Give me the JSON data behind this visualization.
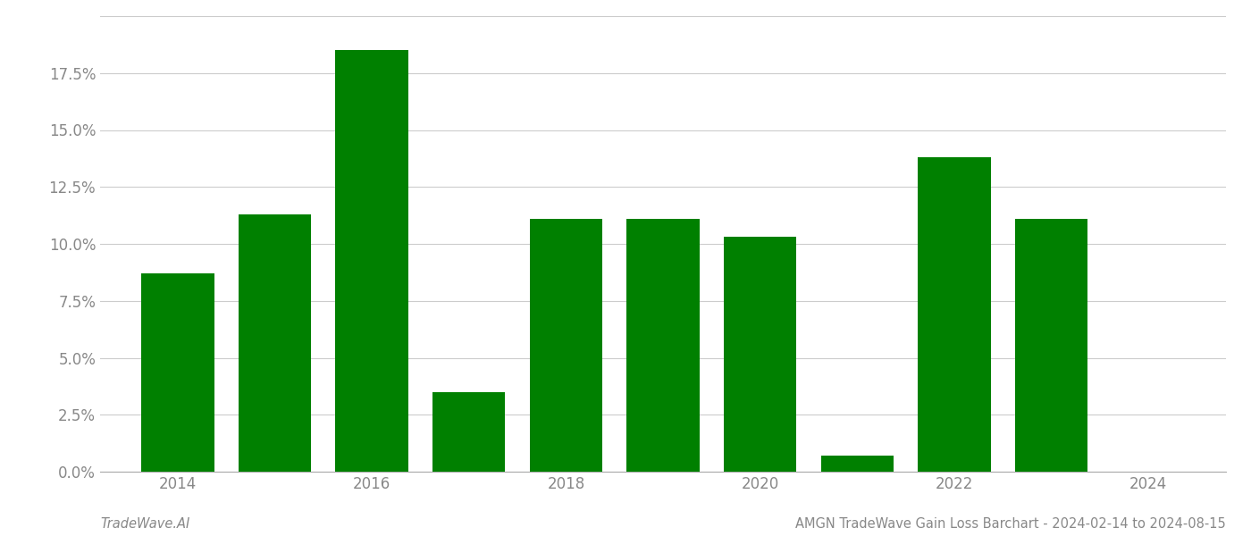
{
  "years": [
    2014,
    2015,
    2016,
    2017,
    2018,
    2019,
    2020,
    2021,
    2022,
    2023,
    2024
  ],
  "values": [
    0.087,
    0.113,
    0.185,
    0.035,
    0.111,
    0.111,
    0.103,
    0.007,
    0.138,
    0.111,
    0.0
  ],
  "bar_color": "#008000",
  "background_color": "#ffffff",
  "grid_color": "#cccccc",
  "axis_color": "#aaaaaa",
  "tick_color": "#888888",
  "ylim": [
    0,
    0.2
  ],
  "yticks": [
    0.0,
    0.025,
    0.05,
    0.075,
    0.1,
    0.125,
    0.15,
    0.175,
    0.2
  ],
  "ytick_labels": [
    "0.0%",
    "2.5%",
    "5.0%",
    "7.5%",
    "10.0%",
    "12.5%",
    "15.0%",
    "17.5%",
    ""
  ],
  "xtick_positions": [
    2014,
    2016,
    2018,
    2020,
    2022,
    2024
  ],
  "xtick_labels": [
    "2014",
    "2016",
    "2018",
    "2020",
    "2022",
    "2024"
  ],
  "xlim": [
    2013.2,
    2024.8
  ],
  "footer_left": "TradeWave.AI",
  "footer_right": "AMGN TradeWave Gain Loss Barchart - 2024-02-14 to 2024-08-15",
  "footer_fontsize": 10.5,
  "tick_fontsize": 12,
  "bar_width": 0.75
}
